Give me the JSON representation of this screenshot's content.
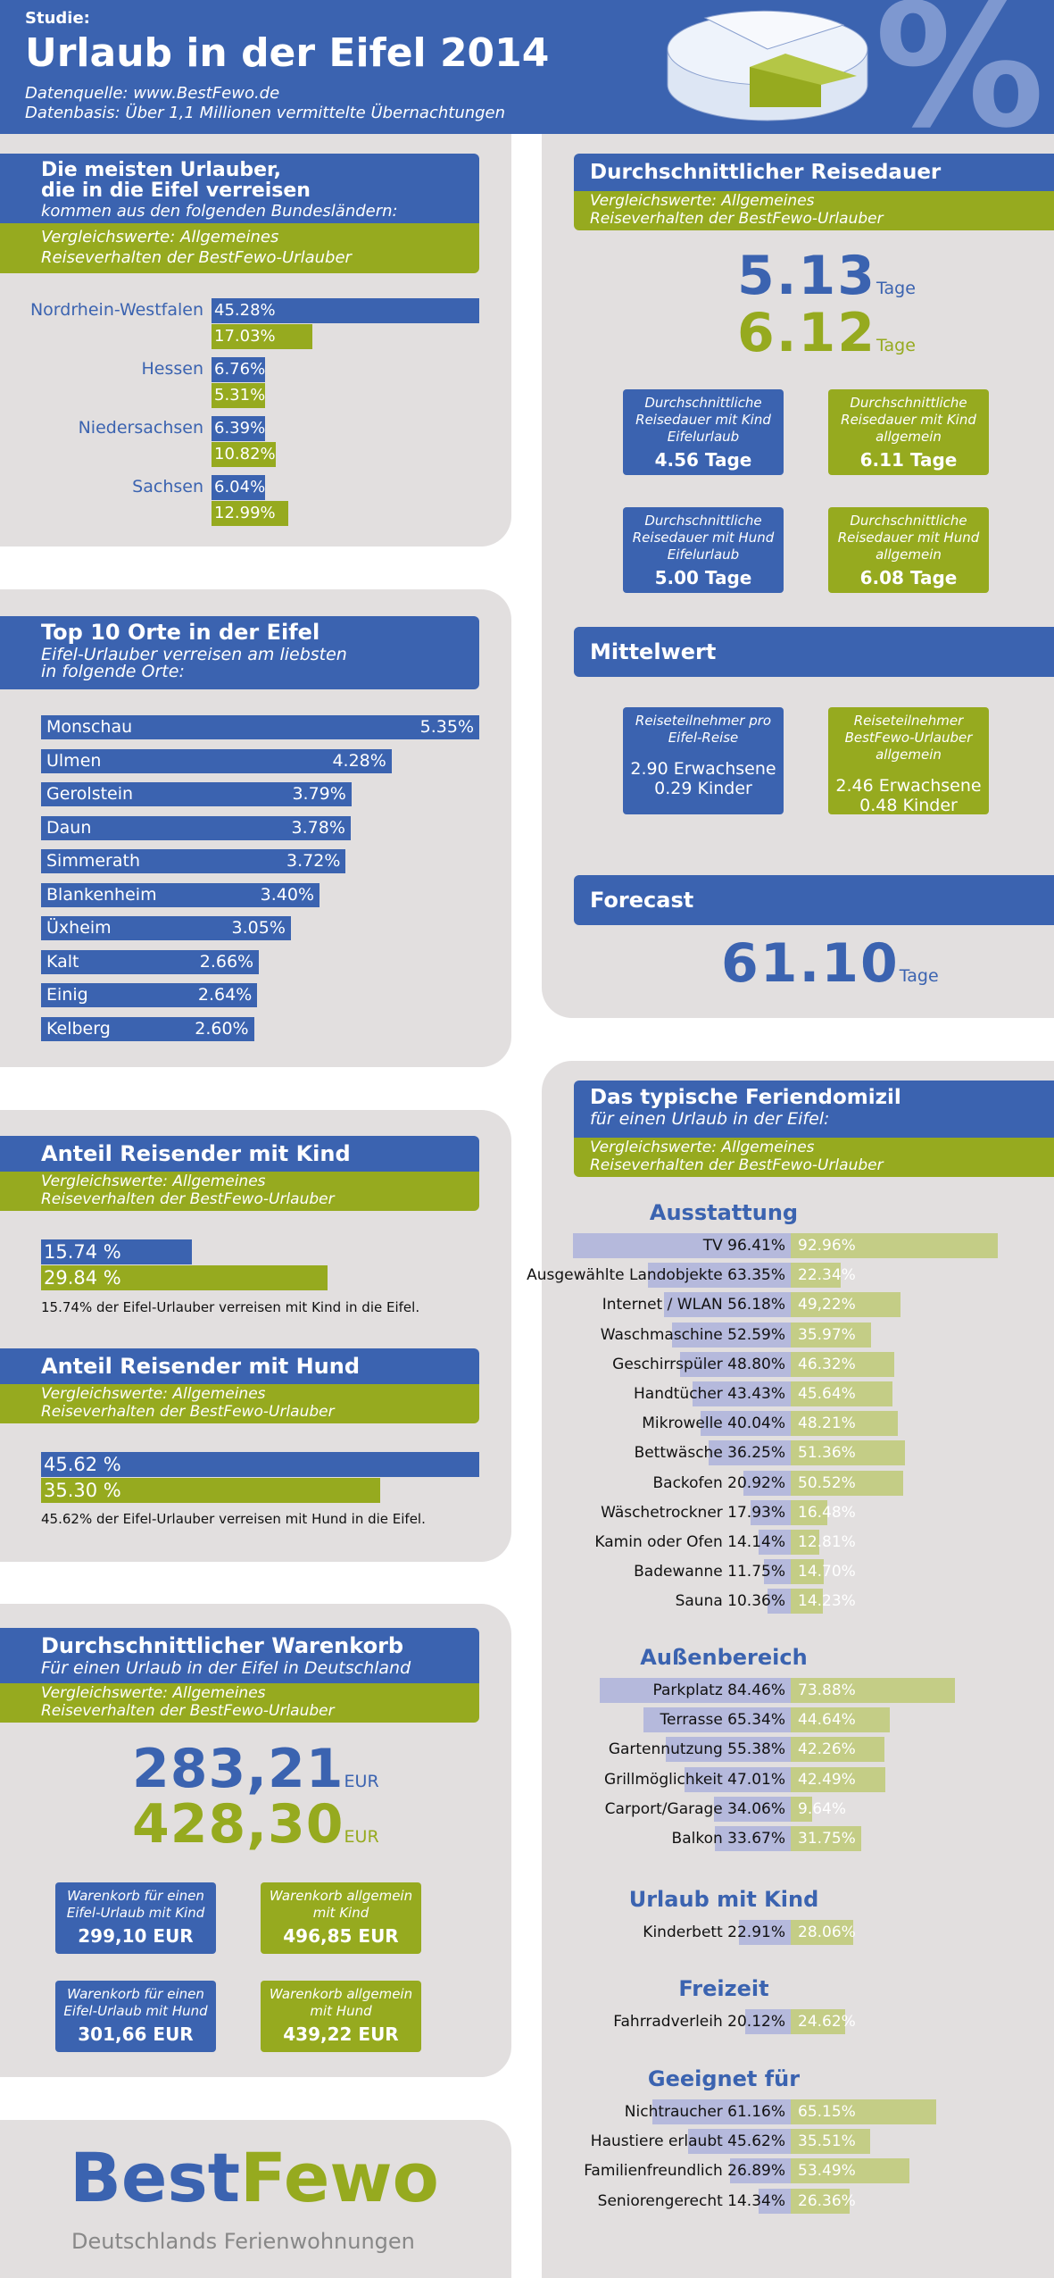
{
  "header": {
    "label": "Studie:",
    "title": "Urlaub in der Eifel 2014",
    "source": "Datenquelle: www.BestFewo.de",
    "basis": "Datenbasis: Über 1,1 Millionen vermittelte Übernachtungen"
  },
  "bundeslaender": {
    "title1": "Die meisten Urlauber,",
    "title2": "die in die Eifel verreisen",
    "subtitle": "kommen aus den folgenden Bundesländern:",
    "compare1": "Vergleichswerte: Allgemeines",
    "compare2": "Reiseverhalten der BestFewo-Urlauber",
    "rows": [
      {
        "name": "Nordrhein-Westfalen",
        "eifel": "45.28%",
        "allg": "17.03%",
        "eifel_pct": 45.28,
        "allg_pct": 17.03
      },
      {
        "name": "Hessen",
        "eifel": "6.76%",
        "allg": "5.31%",
        "eifel_pct": 6.76,
        "allg_pct": 5.31
      },
      {
        "name": "Niedersachsen",
        "eifel": "6.39%",
        "allg": "10.82%",
        "eifel_pct": 6.39,
        "allg_pct": 10.82
      },
      {
        "name": "Sachsen",
        "eifel": "6.04%",
        "allg": "12.99%",
        "eifel_pct": 6.04,
        "allg_pct": 12.99
      }
    ]
  },
  "top10": {
    "title": "Top 10 Orte in der Eifel",
    "subtitle1": "Eifel-Urlauber verreisen am liebsten",
    "subtitle2": "in folgende Orte:",
    "rows": [
      {
        "name": "Monschau",
        "value": "5.35%",
        "pct": 5.35
      },
      {
        "name": "Ulmen",
        "value": "4.28%",
        "pct": 4.28
      },
      {
        "name": "Gerolstein",
        "value": "3.79%",
        "pct": 3.79
      },
      {
        "name": "Daun",
        "value": "3.78%",
        "pct": 3.78
      },
      {
        "name": "Simmerath",
        "value": "3.72%",
        "pct": 3.72
      },
      {
        "name": "Blankenheim",
        "value": "3.40%",
        "pct": 3.4
      },
      {
        "name": "Üxheim",
        "value": "3.05%",
        "pct": 3.05
      },
      {
        "name": "Kalt",
        "value": "2.66%",
        "pct": 2.66
      },
      {
        "name": "Einig",
        "value": "2.64%",
        "pct": 2.64
      },
      {
        "name": "Kelberg",
        "value": "2.60%",
        "pct": 2.6
      }
    ]
  },
  "kind": {
    "title": "Anteil Reisender mit Kind",
    "compare1": "Vergleichswerte: Allgemeines",
    "compare2": "Reiseverhalten der BestFewo-Urlauber",
    "eifel": "15.74 %",
    "allg": "29.84 %",
    "eifel_pct": 15.74,
    "allg_pct": 29.84,
    "note": "15.74% der Eifel-Urlauber verreisen mit Kind in die Eifel."
  },
  "hund": {
    "title": "Anteil Reisender mit Hund",
    "compare1": "Vergleichswerte: Allgemeines",
    "compare2": "Reiseverhalten der BestFewo-Urlauber",
    "eifel": "45.62 %",
    "allg": "35.30 %",
    "eifel_pct": 45.62,
    "allg_pct": 35.3,
    "note": "45.62% der Eifel-Urlauber verreisen mit Hund in die Eifel."
  },
  "warenkorb": {
    "title": "Durchschnittlicher Warenkorb",
    "subtitle": "Für einen Urlaub in der Eifel in Deutschland",
    "compare1": "Vergleichswerte: Allgemeines",
    "compare2": "Reiseverhalten der BestFewo-Urlauber",
    "eifel_value": "283,21",
    "allg_value": "428,30",
    "unit": "EUR",
    "boxes": [
      {
        "t1": "Warenkorb für einen",
        "t2": "Eifel-Urlaub mit Kind",
        "v": "299,10 EUR",
        "color": "blue"
      },
      {
        "t1": "Warenkorb allgemein",
        "t2": "mit Kind",
        "v": "496,85 EUR",
        "color": "green"
      },
      {
        "t1": "Warenkorb für einen",
        "t2": "Eifel-Urlaub mit Hund",
        "v": "301,66 EUR",
        "color": "blue"
      },
      {
        "t1": "Warenkorb allgemein",
        "t2": "mit Hund",
        "v": "439,22 EUR",
        "color": "green"
      }
    ]
  },
  "logo": {
    "best": "Best",
    "fewo": "Fewo",
    "tagline": "Deutschlands Ferienwohnungen"
  },
  "reisedauer": {
    "title": "Durchschnittlicher Reisedauer",
    "compare1": "Vergleichswerte: Allgemeines",
    "compare2": "Reiseverhalten der BestFewo-Urlauber",
    "eifel_value": "5.13",
    "allg_value": "6.12",
    "unit": "Tage",
    "boxes": [
      {
        "t1": "Durchschnittliche",
        "t2": "Reisedauer mit Kind",
        "t3": "Eifelurlaub",
        "v": "4.56 Tage",
        "color": "blue"
      },
      {
        "t1": "Durchschnittliche",
        "t2": "Reisedauer mit Kind",
        "t3": "allgemein",
        "v": "6.11 Tage",
        "color": "green"
      },
      {
        "t1": "Durchschnittliche",
        "t2": "Reisedauer mit Hund",
        "t3": "Eifelurlaub",
        "v": "5.00 Tage",
        "color": "blue"
      },
      {
        "t1": "Durchschnittliche",
        "t2": "Reisedauer mit Hund",
        "t3": "allgemein",
        "v": "6.08 Tage",
        "color": "green"
      }
    ]
  },
  "mittelwert": {
    "title": "Mittelwert",
    "boxes": [
      {
        "t1": "Reiseteilnehmer pro",
        "t2": "Eifel-Reise",
        "t3": "",
        "v1": "2.90 Erwachsene",
        "v2": "0.29 Kinder",
        "color": "blue"
      },
      {
        "t1": "Reiseteilnehmer",
        "t2": "BestFewo-Urlauber",
        "t3": "allgemein",
        "v1": "2.46 Erwachsene",
        "v2": "0.48 Kinder",
        "color": "green"
      }
    ]
  },
  "forecast": {
    "title": "Forecast",
    "value": "61.10",
    "unit": "Tage"
  },
  "domizil": {
    "title": "Das typische Feriendomizil",
    "subtitle": "für einen Urlaub in der Eifel:",
    "compare1": "Vergleichswerte: Allgemeines",
    "compare2": "Reiseverhalten der BestFewo-Urlauber",
    "sections": [
      {
        "title": "Ausstattung",
        "rows": [
          {
            "name": "TV",
            "eifel": "96.41%",
            "allg": "92.96%",
            "e": 96.41,
            "a": 92.96
          },
          {
            "name": "Ausgewählte Landobjekte",
            "eifel": "63.35%",
            "allg": "22.34%",
            "e": 63.35,
            "a": 22.34
          },
          {
            "name": "Internet / WLAN",
            "eifel": "56.18%",
            "allg": "49,22%",
            "e": 56.18,
            "a": 49.22
          },
          {
            "name": "Waschmaschine",
            "eifel": "52.59%",
            "allg": "35.97%",
            "e": 52.59,
            "a": 35.97
          },
          {
            "name": "Geschirrspüler",
            "eifel": "48.80%",
            "allg": "46.32%",
            "e": 48.8,
            "a": 46.32
          },
          {
            "name": "Handtücher",
            "eifel": "43.43%",
            "allg": "45.64%",
            "e": 43.43,
            "a": 45.64
          },
          {
            "name": "Mikrowelle",
            "eifel": "40.04%",
            "allg": "48.21%",
            "e": 40.04,
            "a": 48.21
          },
          {
            "name": "Bettwäsche",
            "eifel": "36.25%",
            "allg": "51.36%",
            "e": 36.25,
            "a": 51.36
          },
          {
            "name": "Backofen",
            "eifel": "20.92%",
            "allg": "50.52%",
            "e": 20.92,
            "a": 50.52
          },
          {
            "name": "Wäschetrockner",
            "eifel": "17.93%",
            "allg": "16.48%",
            "e": 17.93,
            "a": 16.48
          },
          {
            "name": "Kamin oder Ofen",
            "eifel": "14.14%",
            "allg": "12.81%",
            "e": 14.14,
            "a": 12.81
          },
          {
            "name": "Badewanne",
            "eifel": "11.75%",
            "allg": "14.70%",
            "e": 11.75,
            "a": 14.7
          },
          {
            "name": "Sauna",
            "eifel": "10.36%",
            "allg": "14.23%",
            "e": 10.36,
            "a": 14.23
          }
        ]
      },
      {
        "title": "Außenbereich",
        "rows": [
          {
            "name": "Parkplatz",
            "eifel": "84.46%",
            "allg": "73.88%",
            "e": 84.46,
            "a": 73.88
          },
          {
            "name": "Terrasse",
            "eifel": "65.34%",
            "allg": "44.64%",
            "e": 65.34,
            "a": 44.64
          },
          {
            "name": "Gartennutzung",
            "eifel": "55.38%",
            "allg": "42.26%",
            "e": 55.38,
            "a": 42.26
          },
          {
            "name": "Grillmöglichkeit",
            "eifel": "47.01%",
            "allg": "42.49%",
            "e": 47.01,
            "a": 42.49
          },
          {
            "name": "Carport/Garage",
            "eifel": "34.06%",
            "allg": "9.64%",
            "e": 34.06,
            "a": 9.64
          },
          {
            "name": "Balkon",
            "eifel": "33.67%",
            "allg": "31.75%",
            "e": 33.67,
            "a": 31.75
          }
        ]
      },
      {
        "title": "Urlaub mit Kind",
        "rows": [
          {
            "name": "Kinderbett",
            "eifel": "22.91%",
            "allg": "28.06%",
            "e": 22.91,
            "a": 28.06
          }
        ]
      },
      {
        "title": "Freizeit",
        "rows": [
          {
            "name": "Fahrradverleih",
            "eifel": "20.12%",
            "allg": "24.62%",
            "e": 20.12,
            "a": 24.62
          }
        ]
      },
      {
        "title": "Geeignet für",
        "rows": [
          {
            "name": "Nichtraucher",
            "eifel": "61.16%",
            "allg": "65.15%",
            "e": 61.16,
            "a": 65.15
          },
          {
            "name": "Haustiere erlaubt",
            "eifel": "45.62%",
            "allg": "35.51%",
            "e": 45.62,
            "a": 35.51
          },
          {
            "name": "Familienfreundlich",
            "eifel": "26.89%",
            "allg": "53.49%",
            "e": 26.89,
            "a": 53.49
          },
          {
            "name": "Seniorengerecht",
            "eifel": "14.34%",
            "allg": "26.36%",
            "e": 14.34,
            "a": 26.36
          }
        ]
      }
    ]
  },
  "colors": {
    "blue": "#3b63b0",
    "green": "#96aa1f",
    "panel": "#e2dfdf",
    "eq_blue": "#b5b9dc",
    "eq_green": "#c4cd86"
  }
}
